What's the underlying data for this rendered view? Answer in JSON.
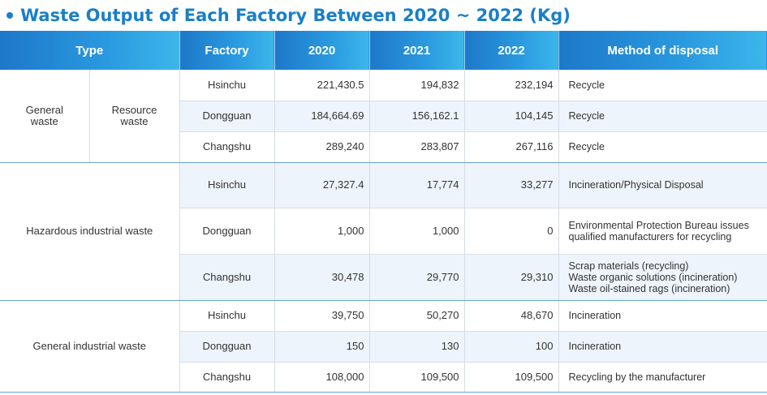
{
  "title": "Waste Output of Each Factory Between 2020 ~ 2022 (Kg)",
  "headers": {
    "type": "Type",
    "factory": "Factory",
    "y2020": "2020",
    "y2021": "2021",
    "y2022": "2022",
    "method": "Method of disposal"
  },
  "groups": [
    {
      "type_main": "General waste",
      "type_sub": "Resource waste",
      "rows": [
        {
          "factory": "Hsinchu",
          "y2020": "221,430.5",
          "y2021": "194,832",
          "y2022": "232,194",
          "method": "Recycle"
        },
        {
          "factory": "Dongguan",
          "y2020": "184,664.69",
          "y2021": "156,162.1",
          "y2022": "104,145",
          "method": "Recycle"
        },
        {
          "factory": "Changshu",
          "y2020": "289,240",
          "y2021": "283,807",
          "y2022": "267,116",
          "method": "Recycle"
        }
      ]
    },
    {
      "type_main": "Hazardous industrial waste",
      "rows": [
        {
          "factory": "Hsinchu",
          "y2020": "27,327.4",
          "y2021": "17,774",
          "y2022": "33,277",
          "method": "Incineration/Physical Disposal"
        },
        {
          "factory": "Dongguan",
          "y2020": "1,000",
          "y2021": "1,000",
          "y2022": "0",
          "method": "Environmental Protection Bureau issues qualified manufacturers for recycling"
        },
        {
          "factory": "Changshu",
          "y2020": "30,478",
          "y2021": "29,770",
          "y2022": "29,310",
          "method": "Scrap materials (recycling)\nWaste organic solutions (incineration)\nWaste oil-stained rags (incineration)"
        }
      ]
    },
    {
      "type_main": "General industrial waste",
      "rows": [
        {
          "factory": "Hsinchu",
          "y2020": "39,750",
          "y2021": "50,270",
          "y2022": "48,670",
          "method": "Incineration"
        },
        {
          "factory": "Dongguan",
          "y2020": "150",
          "y2021": "130",
          "y2022": "100",
          "method": "Incineration"
        },
        {
          "factory": "Changshu",
          "y2020": "108,000",
          "y2021": "109,500",
          "y2022": "109,500",
          "method": "Recycling by the manufacturer"
        }
      ]
    }
  ]
}
